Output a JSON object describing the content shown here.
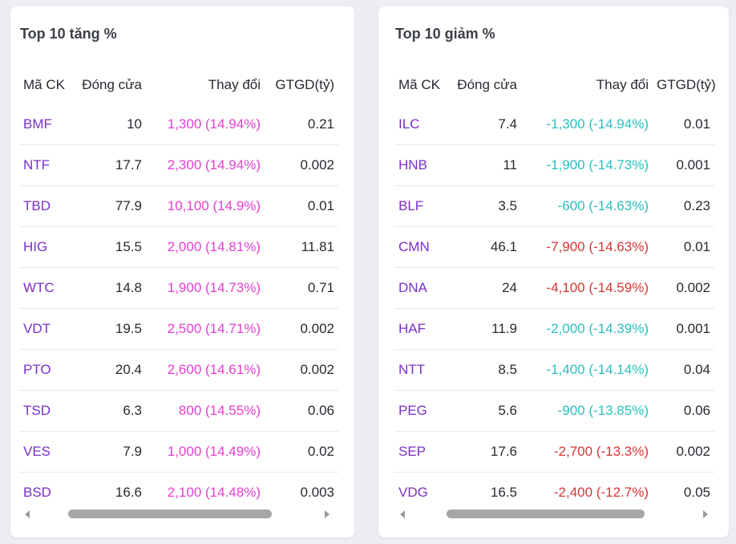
{
  "gainers": {
    "title": "Top 10 tăng %",
    "columns": [
      "Mã CK",
      "Đóng cửa",
      "Thay đổi",
      "GTGD(tỷ)"
    ],
    "rows": [
      {
        "code": "BMF",
        "close": "10",
        "change": "1,300 (14.94%)",
        "value": "0.21",
        "status": "up"
      },
      {
        "code": "NTF",
        "close": "17.7",
        "change": "2,300 (14.94%)",
        "value": "0.002",
        "status": "up"
      },
      {
        "code": "TBD",
        "close": "77.9",
        "change": "10,100 (14.9%)",
        "value": "0.01",
        "status": "up"
      },
      {
        "code": "HIG",
        "close": "15.5",
        "change": "2,000 (14.81%)",
        "value": "11.81",
        "status": "up"
      },
      {
        "code": "WTC",
        "close": "14.8",
        "change": "1,900 (14.73%)",
        "value": "0.71",
        "status": "up"
      },
      {
        "code": "VDT",
        "close": "19.5",
        "change": "2,500 (14.71%)",
        "value": "0.002",
        "status": "up"
      },
      {
        "code": "PTO",
        "close": "20.4",
        "change": "2,600 (14.61%)",
        "value": "0.002",
        "status": "up"
      },
      {
        "code": "TSD",
        "close": "6.3",
        "change": "800 (14.55%)",
        "value": "0.06",
        "status": "up"
      },
      {
        "code": "VES",
        "close": "7.9",
        "change": "1,000 (14.49%)",
        "value": "0.02",
        "status": "up"
      },
      {
        "code": "BSD",
        "close": "16.6",
        "change": "2,100 (14.48%)",
        "value": "0.003",
        "status": "up"
      }
    ]
  },
  "losers": {
    "title": "Top 10 giảm %",
    "columns": [
      "Mã CK",
      "Đóng cửa",
      "Thay đổi",
      "GTGD(tỷ)"
    ],
    "rows": [
      {
        "code": "ILC",
        "close": "7.4",
        "change": "-1,300 (-14.94%)",
        "value": "0.01",
        "status": "floor"
      },
      {
        "code": "HNB",
        "close": "11",
        "change": "-1,900 (-14.73%)",
        "value": "0.001",
        "status": "floor"
      },
      {
        "code": "BLF",
        "close": "3.5",
        "change": "-600 (-14.63%)",
        "value": "0.23",
        "status": "floor"
      },
      {
        "code": "CMN",
        "close": "46.1",
        "change": "-7,900 (-14.63%)",
        "value": "0.01",
        "status": "down"
      },
      {
        "code": "DNA",
        "close": "24",
        "change": "-4,100 (-14.59%)",
        "value": "0.002",
        "status": "down"
      },
      {
        "code": "HAF",
        "close": "11.9",
        "change": "-2,000 (-14.39%)",
        "value": "0.001",
        "status": "floor"
      },
      {
        "code": "NTT",
        "close": "8.5",
        "change": "-1,400 (-14.14%)",
        "value": "0.04",
        "status": "floor"
      },
      {
        "code": "PEG",
        "close": "5.6",
        "change": "-900 (-13.85%)",
        "value": "0.06",
        "status": "floor"
      },
      {
        "code": "SEP",
        "close": "17.6",
        "change": "-2,700 (-13.3%)",
        "value": "0.002",
        "status": "down"
      },
      {
        "code": "VDG",
        "close": "16.5",
        "change": "-2,400 (-12.7%)",
        "value": "0.05",
        "status": "down"
      }
    ]
  },
  "colors": {
    "code": "#7b2fc9",
    "up": "#e53ed4",
    "down": "#d63535",
    "floor": "#2bbfbe"
  },
  "icons": {
    "scroll_left": "triangle-left-icon",
    "scroll_right": "triangle-right-icon"
  }
}
